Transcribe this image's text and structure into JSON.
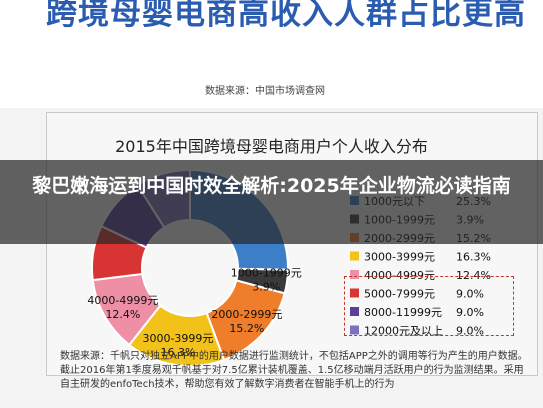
{
  "hero": {
    "title": "跨境母婴电商高收入人群占比更高",
    "source": "数据来源：中国市场调查网"
  },
  "overlay": {
    "headline": "黎巴嫩海运到中国时效全解析:2025年企业物流必读指南"
  },
  "chart_data": {
    "type": "pie",
    "title": "2015年中国跨境母婴电商用户个人收入分布",
    "categories": [
      "1000元以下",
      "1000-1999元",
      "2000-2999元",
      "3000-3999元",
      "4000-4999元",
      "5000-7999元",
      "8000-11999元",
      "12000元及以上"
    ],
    "values": [
      25.3,
      3.9,
      15.2,
      16.3,
      12.4,
      9.0,
      9.0,
      9.0
    ],
    "value_labels": [
      "25.3%",
      "3.9%",
      "15.2%",
      "16.3%",
      "12.4%",
      "9.0%",
      "9.0%",
      "9.0%"
    ],
    "colors": [
      "#3c7fc8",
      "#3a3a3a",
      "#f07d2a",
      "#f2c21b",
      "#ef8fa6",
      "#d93434",
      "#5a3f9a",
      "#7f6fbf"
    ],
    "slice_labels": [
      {
        "index": 1,
        "category": "1000-1999元",
        "percent": "3.9%"
      },
      {
        "index": 2,
        "category": "2000-2999元",
        "percent": "15.2%"
      },
      {
        "index": 3,
        "category": "3000-3999元",
        "percent": "16.3%"
      },
      {
        "index": 4,
        "category": "4000-4999元",
        "percent": "12.4%"
      }
    ],
    "legend_position": "right"
  },
  "note": {
    "text": "数据来源：千帆只对独立APP中的用户数据进行监测统计，不包括APP之外的调用等行为产生的用户数据。截止2016年第1季度易观千帆基于对7.5亿累计装机覆盖、1.5亿移动端月活跃用户的行为监测结果。采用自主研发的enfoTech技术，帮助您有效了解数字消费者在智能手机上的行为"
  }
}
